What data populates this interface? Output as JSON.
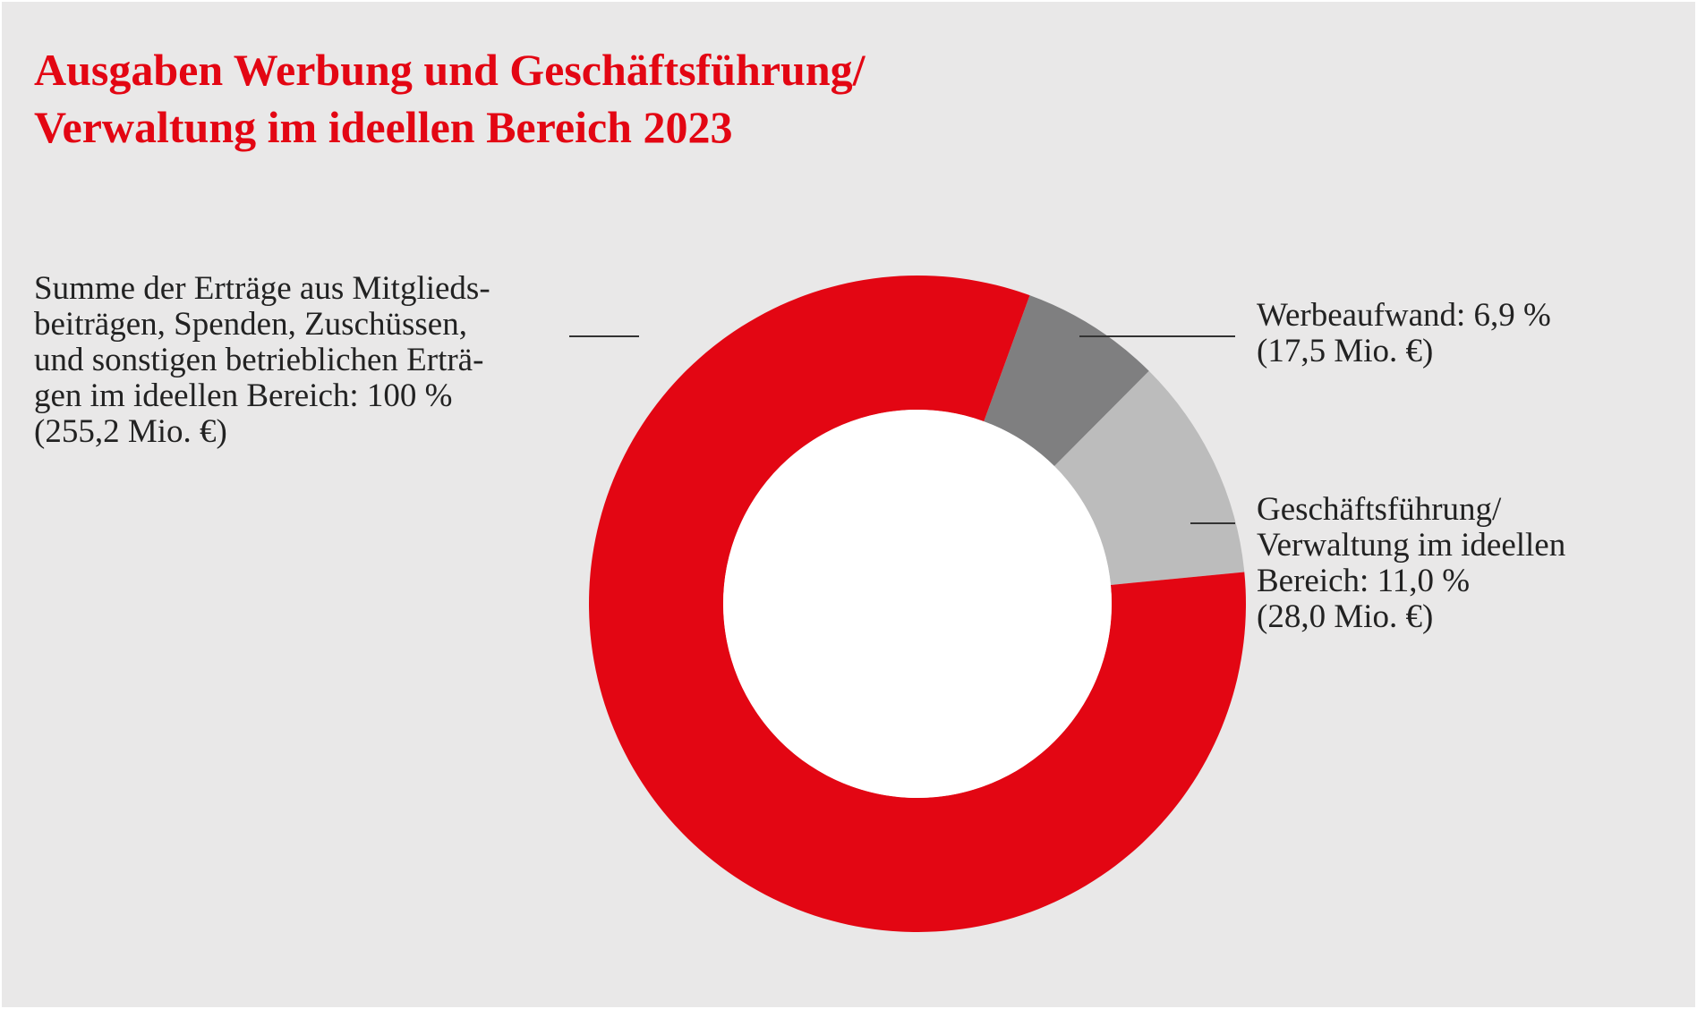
{
  "title": {
    "line1": "Ausgaben Werbung und Geschäftsführung/",
    "line2": "Verwaltung im ideellen Bereich 2023"
  },
  "labels": {
    "total": [
      "Summe der Erträge aus Mitglieds-",
      "beiträgen, Spenden, Zuschüssen,",
      "und sonstigen betrieblichen Erträ-",
      "gen im ideellen Bereich: 100 %",
      "(255,2 Mio. €)"
    ],
    "werbung": [
      "Werbeaufwand: 6,9 %",
      "(17,5 Mio. €)"
    ],
    "gf": [
      "Geschäftsführung/",
      "Verwaltung im ideellen",
      "Bereich: 11,0 %",
      "(28,0 Mio. €)"
    ]
  },
  "colors": {
    "background": "#e9e8e8",
    "title": "#e30613",
    "text": "#222222"
  },
  "chart_data": {
    "type": "pie",
    "style": "donut",
    "total_million_eur": 255.2,
    "slices": [
      {
        "label": "Werbeaufwand",
        "percent": 6.9,
        "value_million_eur": 17.5,
        "color": "#7f7f80"
      },
      {
        "label": "Geschäftsführung/Verwaltung im ideellen Bereich",
        "percent": 11.0,
        "value_million_eur": 28.0,
        "color": "#bcbcbc"
      },
      {
        "label": "Summe der Erträge aus Mitgliedsbeiträgen, Spenden, Zuschüssen, und sonstigen betrieblichen Erträgen im ideellen Bereich",
        "percent": 82.1,
        "color": "#e30613"
      }
    ]
  }
}
